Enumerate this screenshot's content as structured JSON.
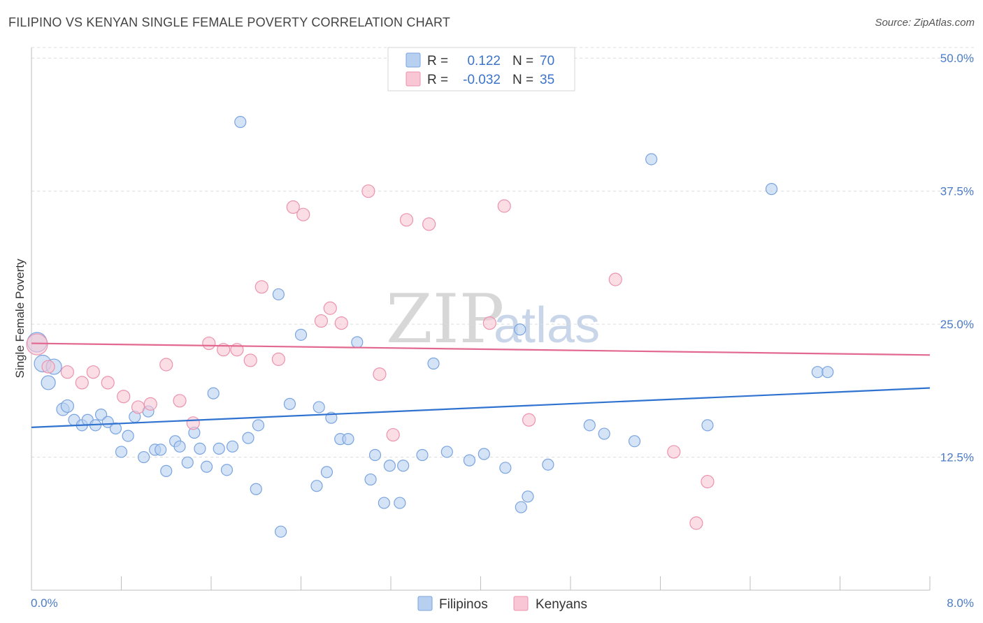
{
  "header": {
    "title": "FILIPINO VS KENYAN SINGLE FEMALE POVERTY CORRELATION CHART",
    "source": "Source: ZipAtlas.com"
  },
  "watermark": {
    "zip": "ZIP",
    "atlas": "atlas"
  },
  "legend_box": {
    "rows": [
      {
        "r_label": "R =",
        "r_value": "0.122",
        "n_label": "N =",
        "n_value": "70",
        "color": "#b8d0f0",
        "stroke": "#7aa4e0"
      },
      {
        "r_label": "R =",
        "r_value": "-0.032",
        "n_label": "N =",
        "n_value": "35",
        "color": "#f8c6d4",
        "stroke": "#ec93ae"
      }
    ]
  },
  "bottom_legend": [
    {
      "label": "Filipinos",
      "color": "#b8d0f0",
      "stroke": "#7aa4e0"
    },
    {
      "label": "Kenyans",
      "color": "#f8c6d4",
      "stroke": "#ec93ae"
    }
  ],
  "chart_data": {
    "type": "scatter",
    "title": "FILIPINO VS KENYAN SINGLE FEMALE POVERTY CORRELATION CHART",
    "xlabel": "",
    "ylabel": "Single Female Poverty",
    "xlim": [
      0.0,
      8.0
    ],
    "ylim": [
      0.0,
      51.0
    ],
    "x_tick_labels": [
      "0.0%",
      "8.0%"
    ],
    "y_ticks": [
      12.5,
      25.0,
      37.5,
      50.0
    ],
    "y_tick_labels": [
      "12.5%",
      "25.0%",
      "37.5%",
      "50.0%"
    ],
    "grid": true,
    "legend": "top-center",
    "colors": {
      "filipinos_fill": "#b8d0f0",
      "filipinos_stroke": "#7aa4e0",
      "filipinos_line": "#2f72d0",
      "kenyans_fill": "#f8c6d4",
      "kenyans_stroke": "#ec93ae",
      "kenyans_line": "#e2688f"
    },
    "series": [
      {
        "name": "Filipinos",
        "trend": [
          [
            0.0,
            15.3
          ],
          [
            8.0,
            19.0
          ]
        ],
        "points": [
          [
            0.05,
            23.3,
            28
          ],
          [
            0.1,
            21.3,
            24
          ],
          [
            0.2,
            21.0,
            22
          ],
          [
            0.15,
            19.5,
            20
          ],
          [
            0.28,
            17.0,
            18
          ],
          [
            0.32,
            17.3,
            18
          ],
          [
            0.38,
            16.0,
            16
          ],
          [
            0.45,
            15.5,
            16
          ],
          [
            0.5,
            16.0,
            16
          ],
          [
            0.57,
            15.5,
            16
          ],
          [
            0.62,
            16.5,
            16
          ],
          [
            0.68,
            15.8,
            16
          ],
          [
            0.75,
            15.2,
            16
          ],
          [
            0.8,
            13.0,
            16
          ],
          [
            0.86,
            14.5,
            16
          ],
          [
            0.92,
            16.3,
            16
          ],
          [
            1.0,
            12.5,
            16
          ],
          [
            1.04,
            16.8,
            16
          ],
          [
            1.1,
            13.2,
            16
          ],
          [
            1.15,
            13.2,
            16
          ],
          [
            1.2,
            11.2,
            16
          ],
          [
            1.28,
            14.0,
            16
          ],
          [
            1.32,
            13.5,
            16
          ],
          [
            1.39,
            12.0,
            16
          ],
          [
            1.45,
            14.8,
            16
          ],
          [
            1.5,
            13.3,
            16
          ],
          [
            1.56,
            11.6,
            16
          ],
          [
            1.62,
            18.5,
            16
          ],
          [
            1.67,
            13.3,
            16
          ],
          [
            1.74,
            11.3,
            16
          ],
          [
            1.79,
            13.5,
            16
          ],
          [
            1.86,
            44.0,
            16
          ],
          [
            1.93,
            14.3,
            16
          ],
          [
            2.0,
            9.5,
            16
          ],
          [
            2.02,
            15.5,
            16
          ],
          [
            2.2,
            27.8,
            16
          ],
          [
            2.22,
            5.5,
            16
          ],
          [
            2.3,
            17.5,
            16
          ],
          [
            2.4,
            24.0,
            16
          ],
          [
            2.54,
            9.8,
            16
          ],
          [
            2.56,
            17.2,
            16
          ],
          [
            2.63,
            11.1,
            16
          ],
          [
            2.67,
            16.2,
            16
          ],
          [
            2.75,
            14.2,
            16
          ],
          [
            2.82,
            14.2,
            16
          ],
          [
            2.9,
            23.3,
            16
          ],
          [
            3.02,
            10.4,
            16
          ],
          [
            3.06,
            12.7,
            16
          ],
          [
            3.14,
            8.2,
            16
          ],
          [
            3.19,
            11.7,
            16
          ],
          [
            3.28,
            8.2,
            16
          ],
          [
            3.31,
            11.7,
            16
          ],
          [
            3.48,
            12.7,
            16
          ],
          [
            3.58,
            21.3,
            16
          ],
          [
            3.7,
            13.0,
            16
          ],
          [
            3.9,
            12.2,
            16
          ],
          [
            4.03,
            12.8,
            16
          ],
          [
            4.22,
            11.5,
            16
          ],
          [
            4.35,
            24.5,
            16
          ],
          [
            4.36,
            7.8,
            16
          ],
          [
            4.42,
            8.8,
            16
          ],
          [
            4.6,
            11.8,
            16
          ],
          [
            4.97,
            15.5,
            16
          ],
          [
            5.1,
            14.7,
            16
          ],
          [
            5.37,
            14.0,
            16
          ],
          [
            5.52,
            40.5,
            16
          ],
          [
            6.02,
            15.5,
            16
          ],
          [
            6.59,
            37.7,
            16
          ],
          [
            7.0,
            20.5,
            16
          ],
          [
            7.09,
            20.5,
            16
          ]
        ]
      },
      {
        "name": "Kenyans",
        "trend": [
          [
            0.0,
            23.2
          ],
          [
            8.0,
            22.1
          ]
        ],
        "points": [
          [
            0.05,
            23.1,
            30
          ],
          [
            0.15,
            21.0,
            18
          ],
          [
            0.32,
            20.5,
            18
          ],
          [
            0.45,
            19.5,
            18
          ],
          [
            0.55,
            20.5,
            18
          ],
          [
            0.68,
            19.5,
            18
          ],
          [
            0.82,
            18.2,
            18
          ],
          [
            0.95,
            17.2,
            18
          ],
          [
            1.06,
            17.5,
            18
          ],
          [
            1.2,
            21.2,
            18
          ],
          [
            1.32,
            17.8,
            18
          ],
          [
            1.44,
            15.7,
            18
          ],
          [
            1.58,
            23.2,
            18
          ],
          [
            1.71,
            22.6,
            18
          ],
          [
            1.83,
            22.6,
            18
          ],
          [
            1.95,
            21.6,
            18
          ],
          [
            2.05,
            28.5,
            18
          ],
          [
            2.2,
            21.7,
            18
          ],
          [
            2.33,
            36.0,
            18
          ],
          [
            2.42,
            35.3,
            18
          ],
          [
            2.58,
            25.3,
            18
          ],
          [
            2.66,
            26.5,
            18
          ],
          [
            2.76,
            25.1,
            18
          ],
          [
            3.0,
            37.5,
            18
          ],
          [
            3.1,
            20.3,
            18
          ],
          [
            3.22,
            14.6,
            18
          ],
          [
            3.34,
            34.8,
            18
          ],
          [
            3.54,
            34.4,
            18
          ],
          [
            4.08,
            25.1,
            18
          ],
          [
            4.21,
            36.1,
            18
          ],
          [
            4.43,
            16.0,
            18
          ],
          [
            5.2,
            29.2,
            18
          ],
          [
            5.72,
            13.0,
            18
          ],
          [
            6.02,
            10.2,
            18
          ],
          [
            5.92,
            6.3,
            18
          ]
        ]
      }
    ]
  }
}
